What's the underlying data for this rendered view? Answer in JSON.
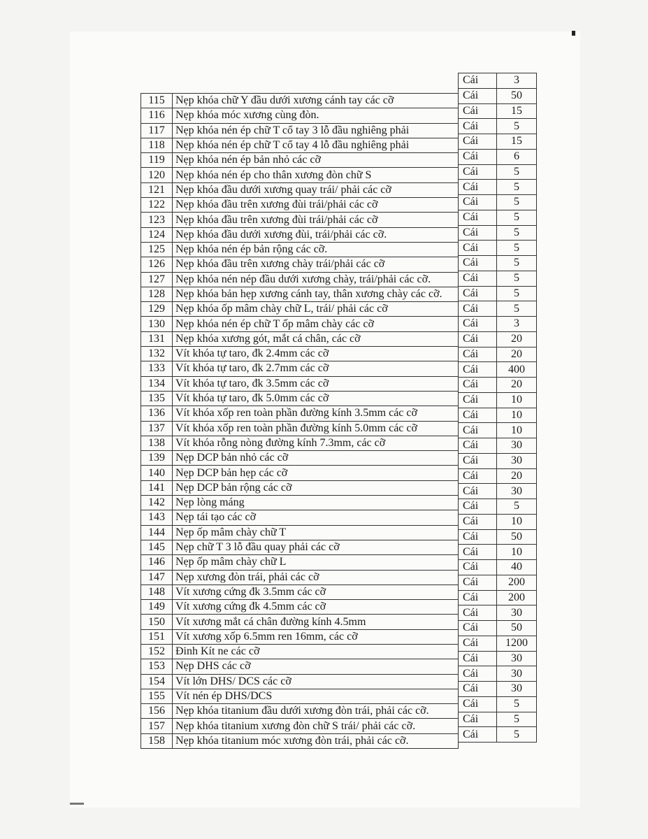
{
  "items": [
    {
      "no": "115",
      "name": "Nẹp khóa chữ Y đầu dưới xương cánh tay các cỡ"
    },
    {
      "no": "116",
      "name": "Nẹp khóa móc xương cùng đòn."
    },
    {
      "no": "117",
      "name": "Nẹp khóa nén ép chữ T cổ tay 3 lỗ đầu nghiêng phải"
    },
    {
      "no": "118",
      "name": "Nẹp khóa nén ép chữ T cổ tay 4 lỗ đầu nghiêng phải"
    },
    {
      "no": "119",
      "name": "Nẹp khóa nén ép bản nhỏ các cỡ"
    },
    {
      "no": "120",
      "name": "Nẹp khóa nén ép cho thân xương đòn chữ S"
    },
    {
      "no": "121",
      "name": "Nẹp khóa đầu dưới xương quay trái/ phải các cỡ"
    },
    {
      "no": "122",
      "name": "Nẹp khóa đầu trên xương đùi trái/phải các cỡ"
    },
    {
      "no": "123",
      "name": "Nẹp khóa đầu trên xương đùi trái/phải các cỡ"
    },
    {
      "no": "124",
      "name": "Nẹp khóa đầu dưới xương đùi, trái/phải các cỡ."
    },
    {
      "no": "125",
      "name": "Nẹp khóa nén ép bản rộng các cỡ."
    },
    {
      "no": "126",
      "name": "Nẹp khóa đầu trên xương chày trái/phải các cỡ"
    },
    {
      "no": "127",
      "name": "Nẹp khóa nén nép đầu dưới xương chày, trái/phải các cỡ."
    },
    {
      "no": "128",
      "name": "Nẹp khóa bản hẹp xương cánh tay, thân xương chày các cỡ."
    },
    {
      "no": "129",
      "name": "Nẹp khóa ốp mâm chày chữ L, trái/ phải các cỡ"
    },
    {
      "no": "130",
      "name": "Nẹp khóa nén ép chữ T ốp mâm chày các cỡ"
    },
    {
      "no": "131",
      "name": "Nẹp khóa xương gót, mắt cá chân, các cỡ"
    },
    {
      "no": "132",
      "name": "Vít khóa tự taro, đk 2.4mm các cỡ"
    },
    {
      "no": "133",
      "name": "Vít khóa tự taro, đk 2.7mm các cỡ"
    },
    {
      "no": "134",
      "name": "Vít khóa tự taro, đk 3.5mm các cỡ"
    },
    {
      "no": "135",
      "name": "Vít khóa tự taro, đk 5.0mm các cỡ"
    },
    {
      "no": "136",
      "name": "Vít khóa xốp ren toàn phần đường kính 3.5mm các cỡ"
    },
    {
      "no": "137",
      "name": "Vít khóa xốp ren toàn phần đường kính 5.0mm các cỡ"
    },
    {
      "no": "138",
      "name": "Vít khóa rỗng nòng đường kính 7.3mm, các cỡ"
    },
    {
      "no": "139",
      "name": "Nẹp DCP bản nhỏ các cỡ"
    },
    {
      "no": "140",
      "name": "Nẹp DCP bản hẹp các cỡ"
    },
    {
      "no": "141",
      "name": "Nẹp DCP bản rộng các cỡ"
    },
    {
      "no": "142",
      "name": "Nẹp lòng máng"
    },
    {
      "no": "143",
      "name": "Nẹp tái tạo các cỡ"
    },
    {
      "no": "144",
      "name": "Nẹp ốp mâm chày chữ T"
    },
    {
      "no": "145",
      "name": "Nẹp chữ T 3 lỗ đầu quay phải các cỡ"
    },
    {
      "no": "146",
      "name": "Nẹp ốp mâm chày chữ L"
    },
    {
      "no": "147",
      "name": "Nẹp xương đòn trái, phải các cỡ"
    },
    {
      "no": "148",
      "name": "Vít xương cứng đk 3.5mm các cỡ"
    },
    {
      "no": "149",
      "name": "Vít xương cứng đk 4.5mm các cỡ"
    },
    {
      "no": "150",
      "name": "Vít xương mắt cá chân đường kính 4.5mm"
    },
    {
      "no": "151",
      "name": "Vít xương xốp 6.5mm ren 16mm, các cỡ"
    },
    {
      "no": "152",
      "name": "Đinh Kít ne các cỡ"
    },
    {
      "no": "153",
      "name": "Nẹp DHS các cỡ"
    },
    {
      "no": "154",
      "name": "Vít lớn DHS/ DCS các cỡ"
    },
    {
      "no": "155",
      "name": "Vít nén ép DHS/DCS"
    },
    {
      "no": "156",
      "name": "Nẹp khóa titanium đầu dưới xương đòn trái, phải các cỡ."
    },
    {
      "no": "157",
      "name": "Nẹp khóa titanium xương đòn chữ S trái/ phải các cỡ."
    },
    {
      "no": "158",
      "name": "Nẹp khóa titanium móc xương đòn trái, phải các cỡ."
    }
  ],
  "quantities": [
    {
      "unit": "Cái",
      "qty": "3"
    },
    {
      "unit": "Cái",
      "qty": "50"
    },
    {
      "unit": "Cái",
      "qty": "15"
    },
    {
      "unit": "Cái",
      "qty": "5"
    },
    {
      "unit": "Cái",
      "qty": "15"
    },
    {
      "unit": "Cái",
      "qty": "6"
    },
    {
      "unit": "Cái",
      "qty": "5"
    },
    {
      "unit": "Cái",
      "qty": "5"
    },
    {
      "unit": "Cái",
      "qty": "5"
    },
    {
      "unit": "Cái",
      "qty": "5"
    },
    {
      "unit": "Cái",
      "qty": "5"
    },
    {
      "unit": "Cái",
      "qty": "5"
    },
    {
      "unit": "Cái",
      "qty": "5"
    },
    {
      "unit": "Cái",
      "qty": "5"
    },
    {
      "unit": "Cái",
      "qty": "5"
    },
    {
      "unit": "Cái",
      "qty": "5"
    },
    {
      "unit": "Cái",
      "qty": "3"
    },
    {
      "unit": "Cái",
      "qty": "20"
    },
    {
      "unit": "Cái",
      "qty": "20"
    },
    {
      "unit": "Cái",
      "qty": "400"
    },
    {
      "unit": "Cái",
      "qty": "20"
    },
    {
      "unit": "Cái",
      "qty": "10"
    },
    {
      "unit": "Cái",
      "qty": "10"
    },
    {
      "unit": "Cái",
      "qty": "10"
    },
    {
      "unit": "Cái",
      "qty": "30"
    },
    {
      "unit": "Cái",
      "qty": "30"
    },
    {
      "unit": "Cái",
      "qty": "20"
    },
    {
      "unit": "Cái",
      "qty": "30"
    },
    {
      "unit": "Cái",
      "qty": "5"
    },
    {
      "unit": "Cái",
      "qty": "10"
    },
    {
      "unit": "Cái",
      "qty": "50"
    },
    {
      "unit": "Cái",
      "qty": "10"
    },
    {
      "unit": "Cái",
      "qty": "40"
    },
    {
      "unit": "Cái",
      "qty": "200"
    },
    {
      "unit": "Cái",
      "qty": "200"
    },
    {
      "unit": "Cái",
      "qty": "30"
    },
    {
      "unit": "Cái",
      "qty": "50"
    },
    {
      "unit": "Cái",
      "qty": "1200"
    },
    {
      "unit": "Cái",
      "qty": "30"
    },
    {
      "unit": "Cái",
      "qty": "30"
    },
    {
      "unit": "Cái",
      "qty": "30"
    },
    {
      "unit": "Cái",
      "qty": "5"
    },
    {
      "unit": "Cái",
      "qty": "5"
    },
    {
      "unit": "Cái",
      "qty": "5"
    }
  ]
}
